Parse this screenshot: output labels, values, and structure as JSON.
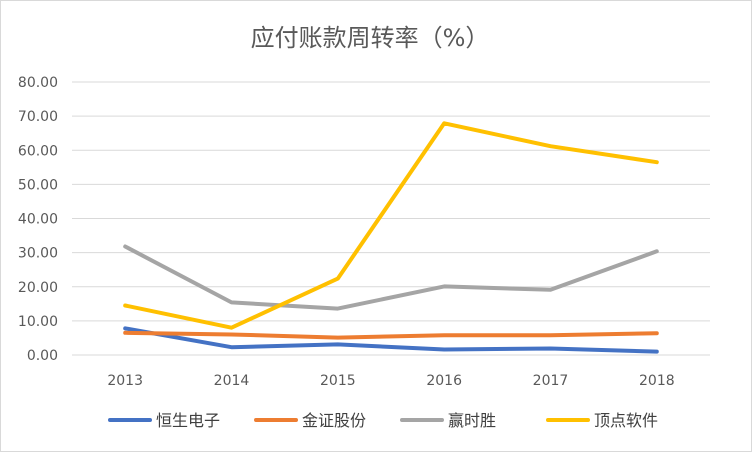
{
  "chart_data": {
    "type": "line",
    "title": "应付账款周转率（%）",
    "xlabel": "",
    "ylabel": "",
    "categories": [
      "2013",
      "2014",
      "2015",
      "2016",
      "2017",
      "2018"
    ],
    "ylim": [
      0,
      80
    ],
    "yticks": [
      "0.00",
      "10.00",
      "20.00",
      "30.00",
      "40.00",
      "50.00",
      "60.00",
      "70.00",
      "80.00"
    ],
    "grid": "horizontal",
    "legend_position": "bottom",
    "series": [
      {
        "name": "恒生电子",
        "color": "#4472C4",
        "values": [
          7.8,
          2.3,
          3.1,
          1.6,
          1.9,
          1.0
        ]
      },
      {
        "name": "金证股份",
        "color": "#ED7D31",
        "values": [
          6.5,
          6.0,
          5.1,
          5.8,
          5.8,
          6.4
        ]
      },
      {
        "name": "赢时胜",
        "color": "#A5A5A5",
        "values": [
          31.8,
          15.4,
          13.6,
          20.1,
          19.1,
          30.4
        ]
      },
      {
        "name": "顶点软件",
        "color": "#FFC000",
        "values": [
          14.5,
          8.0,
          22.4,
          67.9,
          61.2,
          56.5
        ]
      }
    ]
  }
}
